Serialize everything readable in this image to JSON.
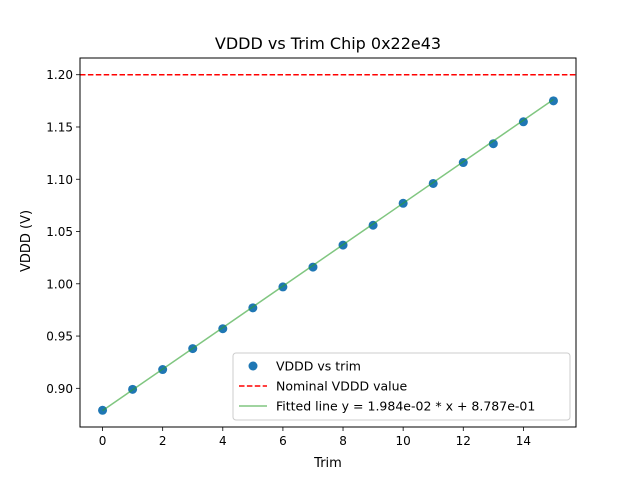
{
  "chart_data": {
    "type": "scatter",
    "title": "VDDD vs Trim Chip 0x22e43",
    "xlabel": "Trim",
    "ylabel": "VDDD (V)",
    "xlim": [
      -0.75,
      15.75
    ],
    "ylim": [
      0.863,
      1.216
    ],
    "xticks": [
      0,
      2,
      4,
      6,
      8,
      10,
      12,
      14
    ],
    "xtick_labels": [
      "0",
      "2",
      "4",
      "6",
      "8",
      "10",
      "12",
      "14"
    ],
    "yticks": [
      0.9,
      0.95,
      1.0,
      1.05,
      1.1,
      1.15,
      1.2
    ],
    "ytick_labels": [
      "0.90",
      "0.95",
      "1.00",
      "1.05",
      "1.10",
      "1.15",
      "1.20"
    ],
    "grid": false,
    "legend_position": "lower-right",
    "series": [
      {
        "name": "VDDD vs trim",
        "kind": "scatter",
        "color": "#1f77b4",
        "x": [
          0,
          1,
          2,
          3,
          4,
          5,
          6,
          7,
          8,
          9,
          10,
          11,
          12,
          13,
          14,
          15
        ],
        "y": [
          0.879,
          0.899,
          0.918,
          0.938,
          0.957,
          0.977,
          0.997,
          1.016,
          1.037,
          1.056,
          1.077,
          1.096,
          1.116,
          1.134,
          1.155,
          1.175
        ]
      },
      {
        "name": "Nominal VDDD value",
        "kind": "hline",
        "color": "#ff0000",
        "linestyle": "dashed",
        "y": 1.2
      },
      {
        "name": "Fitted line y = 1.984e-02 * x + 8.787e-01",
        "kind": "line",
        "color": "#2ca02c",
        "alpha": 0.6,
        "slope": 0.01984,
        "intercept": 0.8787,
        "x_range": [
          0,
          15
        ]
      }
    ]
  }
}
